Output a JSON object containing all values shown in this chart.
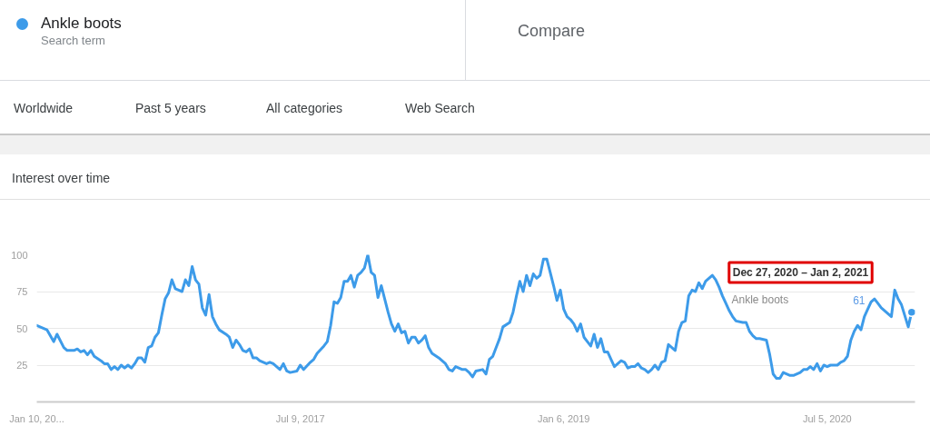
{
  "chart_data": {
    "type": "line",
    "title": "Interest over time",
    "annotations": [
      "Search term",
      "Compare",
      "Worldwide",
      "Past 5 years",
      "All categories",
      "Web Search",
      "Dec 27, 2020 – Jan 2, 2021",
      "61"
    ],
    "legend": "top left",
    "grid": "y",
    "xlim": [
      "2016-01-10",
      "2021-01-03"
    ],
    "xticks": [
      {
        "value": "2016-01-10",
        "label": "Jan 10, 20..."
      },
      {
        "value": "2017-07-09",
        "label": "Jul 9, 2017"
      },
      {
        "value": "2019-01-06",
        "label": "Jan 6, 2019"
      },
      {
        "value": "2020-07-05",
        "label": "Jul 5, 2020"
      }
    ],
    "ylim": [
      0,
      100
    ],
    "yticks": [
      25,
      50,
      75,
      100
    ],
    "series": [
      {
        "name": "Ankle boots",
        "color": "#3d9be9",
        "x": [
          "2016-01-10",
          "2016-01-31",
          "2016-02-14",
          "2016-02-21",
          "2016-03-06",
          "2016-03-13",
          "2016-03-20",
          "2016-03-27",
          "2016-04-03",
          "2016-04-10",
          "2016-04-17",
          "2016-04-24",
          "2016-05-01",
          "2016-05-08",
          "2016-05-22",
          "2016-05-29",
          "2016-06-05",
          "2016-06-12",
          "2016-06-19",
          "2016-06-26",
          "2016-07-03",
          "2016-07-10",
          "2016-07-17",
          "2016-07-24",
          "2016-07-31",
          "2016-08-07",
          "2016-08-14",
          "2016-08-21",
          "2016-08-28",
          "2016-09-04",
          "2016-09-11",
          "2016-09-18",
          "2016-09-25",
          "2016-10-02",
          "2016-10-09",
          "2016-10-16",
          "2016-10-23",
          "2016-10-30",
          "2016-11-06",
          "2016-11-13",
          "2016-11-20",
          "2016-11-27",
          "2016-12-04",
          "2016-12-11",
          "2016-12-18",
          "2016-12-25",
          "2017-01-01",
          "2017-01-08",
          "2017-01-15",
          "2017-01-22",
          "2017-02-05",
          "2017-02-12",
          "2017-02-19",
          "2017-02-26",
          "2017-03-05",
          "2017-03-12",
          "2017-03-19",
          "2017-03-26",
          "2017-04-02",
          "2017-04-09",
          "2017-04-16",
          "2017-04-30",
          "2017-05-07",
          "2017-05-14",
          "2017-05-28",
          "2017-06-04",
          "2017-06-11",
          "2017-06-18",
          "2017-07-02",
          "2017-07-09",
          "2017-07-16",
          "2017-07-30",
          "2017-08-06",
          "2017-08-13",
          "2017-08-27",
          "2017-09-03",
          "2017-09-10",
          "2017-09-17",
          "2017-09-24",
          "2017-10-01",
          "2017-10-08",
          "2017-10-15",
          "2017-10-22",
          "2017-10-29",
          "2017-11-05",
          "2017-11-12",
          "2017-11-19",
          "2017-11-26",
          "2017-12-03",
          "2017-12-10",
          "2017-12-17",
          "2017-12-24",
          "2018-01-07",
          "2018-01-14",
          "2018-01-21",
          "2018-01-28",
          "2018-02-04",
          "2018-02-11",
          "2018-02-18",
          "2018-02-25",
          "2018-03-04",
          "2018-03-11",
          "2018-03-18",
          "2018-03-25",
          "2018-04-01",
          "2018-04-08",
          "2018-04-22",
          "2018-04-29",
          "2018-05-06",
          "2018-05-13",
          "2018-05-20",
          "2018-05-27",
          "2018-06-10",
          "2018-06-17",
          "2018-06-24",
          "2018-07-01",
          "2018-07-08",
          "2018-07-22",
          "2018-07-29",
          "2018-08-05",
          "2018-08-12",
          "2018-08-19",
          "2018-08-26",
          "2018-09-02",
          "2018-09-16",
          "2018-09-23",
          "2018-09-30",
          "2018-10-07",
          "2018-10-14",
          "2018-10-21",
          "2018-10-28",
          "2018-11-04",
          "2018-11-11",
          "2018-11-18",
          "2018-11-25",
          "2018-12-02",
          "2018-12-09",
          "2018-12-16",
          "2018-12-23",
          "2018-12-30",
          "2019-01-06",
          "2019-01-13",
          "2019-01-20",
          "2019-01-27",
          "2019-02-03",
          "2019-02-10",
          "2019-02-17",
          "2019-02-24",
          "2019-03-03",
          "2019-03-10",
          "2019-03-17",
          "2019-03-24",
          "2019-03-31",
          "2019-04-07",
          "2019-04-14",
          "2019-04-21",
          "2019-05-05",
          "2019-05-12",
          "2019-05-19",
          "2019-05-26",
          "2019-06-02",
          "2019-06-09",
          "2019-06-16",
          "2019-06-23",
          "2019-06-30",
          "2019-07-07",
          "2019-07-14",
          "2019-07-21",
          "2019-07-28",
          "2019-08-04",
          "2019-08-11",
          "2019-08-25",
          "2019-09-01",
          "2019-09-08",
          "2019-09-15",
          "2019-09-22",
          "2019-09-29",
          "2019-10-06",
          "2019-10-13",
          "2019-10-20",
          "2019-10-27",
          "2019-11-03",
          "2019-11-10",
          "2019-11-17",
          "2019-11-24",
          "2019-12-01",
          "2019-12-08",
          "2019-12-15",
          "2019-12-22",
          "2019-12-29",
          "2020-01-12",
          "2020-01-19",
          "2020-01-26",
          "2020-02-02",
          "2020-02-09",
          "2020-02-16",
          "2020-03-01",
          "2020-03-08",
          "2020-03-15",
          "2020-03-22",
          "2020-03-29",
          "2020-04-05",
          "2020-04-19",
          "2020-04-26",
          "2020-05-10",
          "2020-05-17",
          "2020-05-24",
          "2020-05-31",
          "2020-06-07",
          "2020-06-14",
          "2020-06-21",
          "2020-06-28",
          "2020-07-05",
          "2020-07-12",
          "2020-07-26",
          "2020-08-02",
          "2020-08-09",
          "2020-08-16",
          "2020-08-23",
          "2020-08-30",
          "2020-09-06",
          "2020-09-13",
          "2020-09-20",
          "2020-09-27",
          "2020-10-04",
          "2020-10-11",
          "2020-10-18",
          "2020-10-25",
          "2020-11-01",
          "2020-11-15",
          "2020-11-22",
          "2020-11-29",
          "2020-12-06",
          "2020-12-20",
          "2020-12-27"
        ],
        "values": [
          52,
          49,
          41,
          46,
          37,
          35,
          35,
          35,
          36,
          34,
          35,
          32,
          35,
          31,
          28,
          26,
          26,
          22,
          24,
          22,
          25,
          23,
          25,
          23,
          26,
          30,
          30,
          27,
          37,
          38,
          44,
          47,
          59,
          70,
          74,
          83,
          77,
          76,
          75,
          83,
          79,
          92,
          83,
          80,
          64,
          59,
          73,
          58,
          53,
          49,
          46,
          44,
          37,
          42,
          39,
          35,
          34,
          36,
          30,
          30,
          28,
          26,
          27,
          26,
          22,
          26,
          21,
          20,
          21,
          25,
          22,
          27,
          29,
          33,
          38,
          41,
          52,
          68,
          67,
          71,
          82,
          82,
          86,
          78,
          86,
          88,
          91,
          100,
          88,
          86,
          71,
          79,
          61,
          53,
          48,
          53,
          47,
          48,
          40,
          44,
          44,
          40,
          42,
          45,
          37,
          33,
          30,
          28,
          26,
          22,
          21,
          24,
          22,
          22,
          20,
          17,
          21,
          22,
          19,
          29,
          31,
          37,
          43,
          51,
          54,
          61,
          72,
          82,
          75,
          86,
          79,
          87,
          84,
          86,
          97,
          97,
          88,
          79,
          69,
          76,
          63,
          58,
          56,
          53,
          48,
          53,
          44,
          41,
          38,
          46,
          37,
          43,
          34,
          34,
          29,
          24,
          28,
          27,
          23,
          24,
          24,
          26,
          23,
          22,
          20,
          22,
          25,
          22,
          27,
          28,
          39,
          35,
          48,
          54,
          55,
          72,
          76,
          75,
          81,
          77,
          82,
          84,
          86,
          83,
          78,
          72,
          67,
          62,
          58,
          55,
          54,
          54,
          48,
          45,
          43,
          43,
          42,
          32,
          19,
          16,
          16,
          20,
          18,
          18,
          20,
          22,
          22,
          24,
          22,
          26,
          21,
          25,
          24,
          25,
          25,
          27,
          28,
          31,
          42,
          48,
          52,
          49,
          58,
          63,
          68,
          70,
          67,
          64,
          62,
          58,
          76,
          70,
          66,
          51,
          61
        ]
      }
    ]
  }
}
